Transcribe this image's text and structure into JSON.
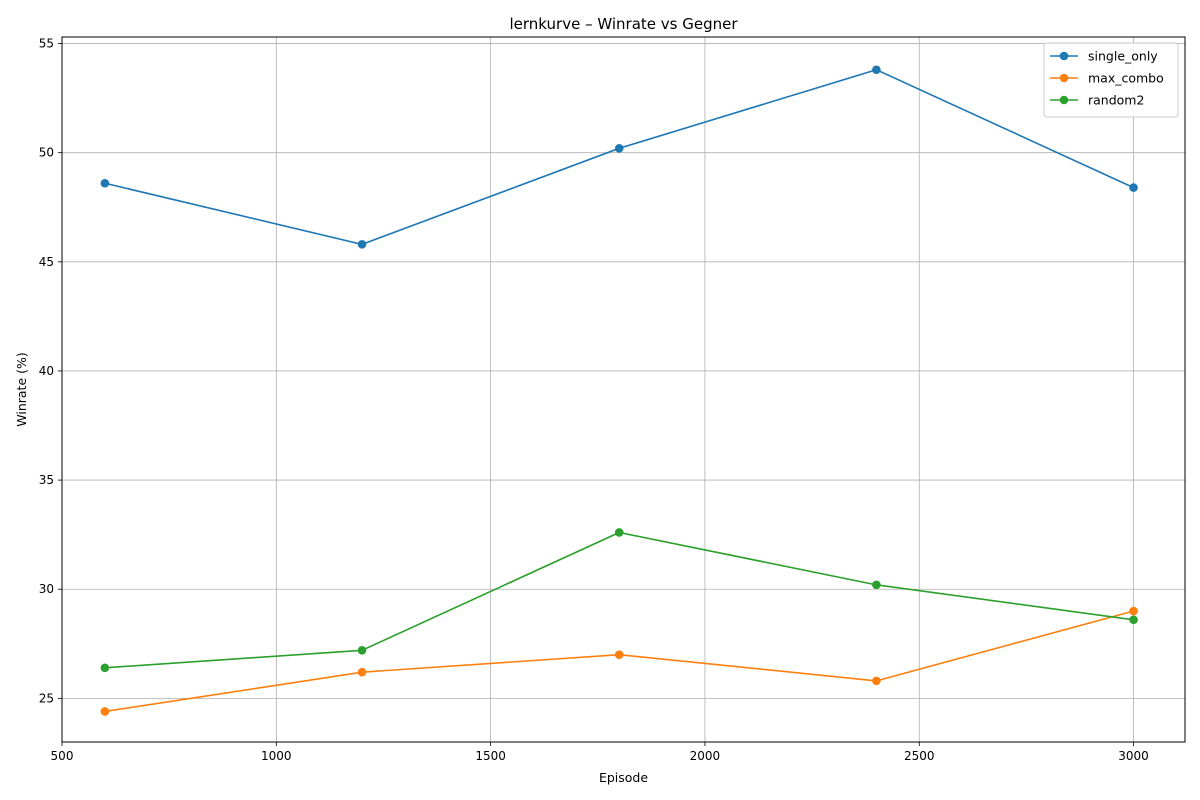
{
  "chart_data": {
    "type": "line",
    "title": "lernkurve – Winrate vs Gegner",
    "xlabel": "Episode",
    "ylabel": "Winrate (%)",
    "xlim": [
      500,
      3120
    ],
    "ylim": [
      23,
      55.3
    ],
    "xticks": [
      500,
      1000,
      1500,
      2000,
      2500,
      3000
    ],
    "yticks": [
      25,
      30,
      35,
      40,
      45,
      50,
      55
    ],
    "grid": true,
    "legend_position": "top-right",
    "x": [
      600,
      1200,
      1800,
      2400,
      3000
    ],
    "series": [
      {
        "name": "single_only",
        "color": "#1f77b4",
        "values": [
          48.6,
          45.8,
          50.2,
          53.8,
          48.4
        ]
      },
      {
        "name": "max_combo",
        "color": "#ff7f0e",
        "values": [
          24.4,
          26.2,
          27.0,
          25.8,
          29.0
        ]
      },
      {
        "name": "random2",
        "color": "#2ca02c",
        "values": [
          26.4,
          27.2,
          32.6,
          30.2,
          28.6
        ]
      }
    ]
  }
}
